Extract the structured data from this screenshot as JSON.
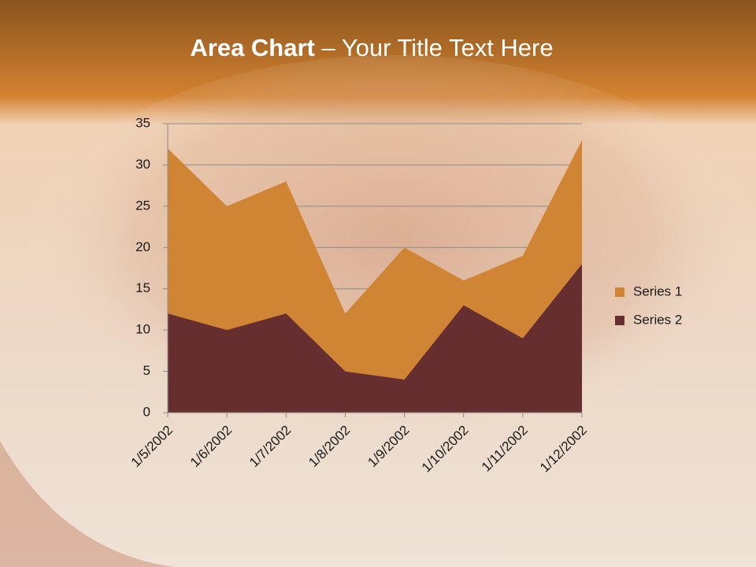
{
  "chart_data": {
    "type": "area",
    "title_bold": "Area Chart",
    "title": "– Your Title Text Here",
    "categories": [
      "1/5/2002",
      "1/6/2002",
      "1/7/2002",
      "1/8/2002",
      "1/9/2002",
      "1/10/2002",
      "1/11/2002",
      "1/12/2002"
    ],
    "series": [
      {
        "name": "Series 1",
        "color": "#d08535",
        "values": [
          32,
          25,
          28,
          12,
          20,
          16,
          19,
          33
        ]
      },
      {
        "name": "Series 2",
        "color": "#672e30",
        "values": [
          12,
          10,
          12,
          5,
          4,
          13,
          9,
          18
        ]
      }
    ],
    "ylim": [
      0,
      35
    ],
    "yticks": [
      0,
      5,
      10,
      15,
      20,
      25,
      30,
      35
    ],
    "grid": true,
    "legend": "right"
  }
}
